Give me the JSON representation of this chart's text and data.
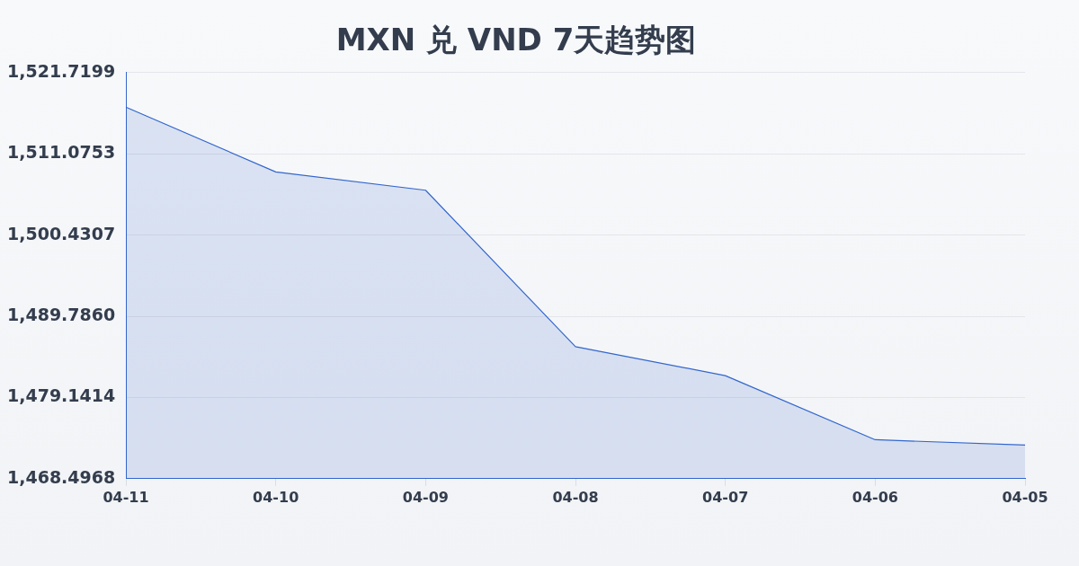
{
  "chart_data": {
    "type": "area",
    "title": "MXN 兑 VND 7天趋势图",
    "categories": [
      "04-11",
      "04-10",
      "04-09",
      "04-08",
      "04-07",
      "04-06",
      "04-05"
    ],
    "values": [
      1517.2,
      1508.7,
      1506.3,
      1485.8,
      1482.0,
      1473.6,
      1472.9
    ],
    "color": "#3366cc",
    "ylim": [
      1468.4968,
      1521.7199
    ],
    "yticks": [
      {
        "value": 1468.4968,
        "label": "1,468.4968"
      },
      {
        "value": 1479.1414,
        "label": "1,479.1414"
      },
      {
        "value": 1489.786,
        "label": "1,489.7860"
      },
      {
        "value": 1500.4307,
        "label": "1,500.4307"
      },
      {
        "value": 1511.0753,
        "label": "1,511.0753"
      },
      {
        "value": 1521.7199,
        "label": "1,521.7199"
      }
    ],
    "grid": "y",
    "legend": false,
    "marker": "none"
  }
}
